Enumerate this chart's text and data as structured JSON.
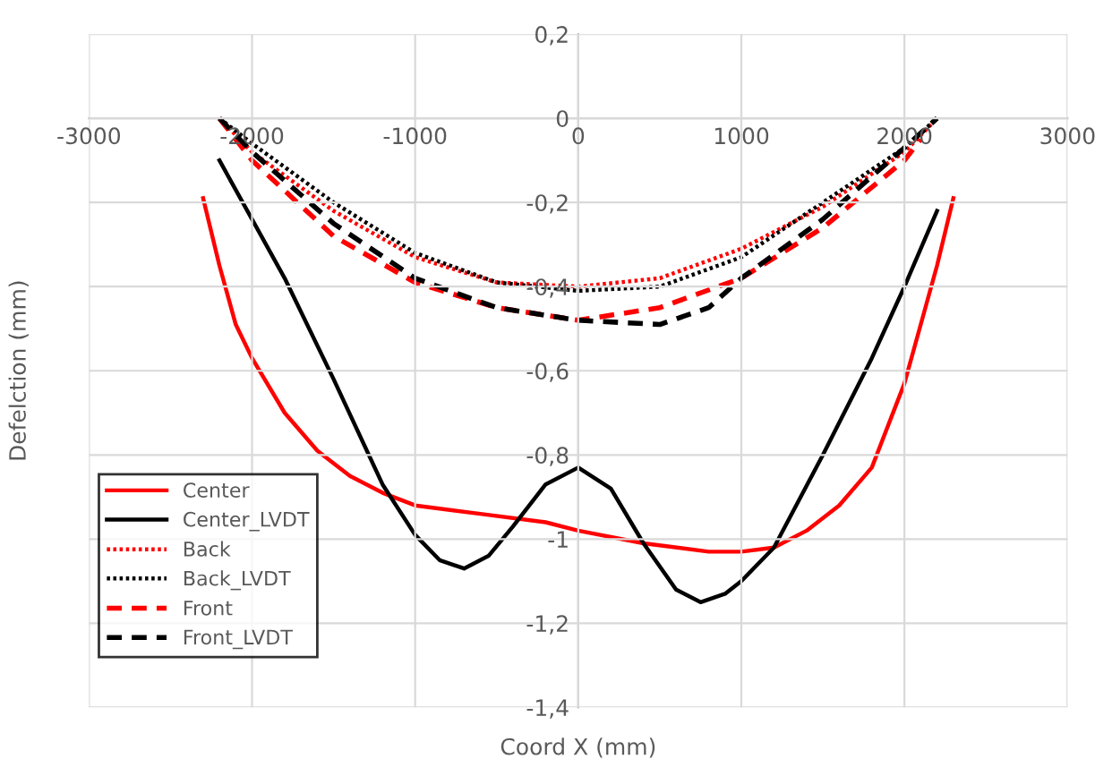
{
  "chart_data": {
    "type": "line",
    "xlabel": "Coord X (mm)",
    "ylabel": "Defelction (mm)",
    "xlim": [
      -3000,
      3000
    ],
    "xticks": [
      -3000,
      -2000,
      -1000,
      0,
      1000,
      2000,
      3000
    ],
    "ylim": [
      -1.4,
      0.2
    ],
    "yticks": [
      {
        "value": -1.4,
        "label": "-1,4"
      },
      {
        "value": -1.2,
        "label": "-1,2"
      },
      {
        "value": -1,
        "label": "-1"
      },
      {
        "value": -0.8,
        "label": "-0,8"
      },
      {
        "value": -0.6,
        "label": "-0,6"
      },
      {
        "value": -0.4,
        "label": "-0,4"
      },
      {
        "value": -0.2,
        "label": "-0,2"
      },
      0,
      {
        "value": 0.2,
        "label": "0,2"
      }
    ],
    "grid": true,
    "legend": "bottom left",
    "marker": "none",
    "series": [
      {
        "name": "Center",
        "color": "#ff0000",
        "line_style": "solid",
        "x": [
          -2300,
          -2200,
          -2100,
          -2000,
          -1800,
          -1600,
          -1400,
          -1200,
          -1000,
          -600,
          -200,
          0,
          400,
          800,
          1000,
          1200,
          1400,
          1600,
          1800,
          2000,
          2200,
          2300
        ],
        "values": [
          -0.19,
          -0.35,
          -0.49,
          -0.57,
          -0.7,
          -0.79,
          -0.85,
          -0.89,
          -0.92,
          -0.94,
          -0.96,
          -0.98,
          -1.01,
          -1.03,
          -1.03,
          -1.02,
          -0.98,
          -0.92,
          -0.83,
          -0.63,
          -0.35,
          -0.19
        ]
      },
      {
        "name": "Center_LVDT",
        "color": "#000000",
        "line_style": "solid",
        "x": [
          -2200,
          -1800,
          -1500,
          -1200,
          -1000,
          -850,
          -700,
          -550,
          -400,
          -200,
          0,
          200,
          400,
          600,
          750,
          900,
          1000,
          1200,
          1500,
          1800,
          2000,
          2200
        ],
        "values": [
          -0.1,
          -0.38,
          -0.62,
          -0.87,
          -0.99,
          -1.05,
          -1.07,
          -1.04,
          -0.97,
          -0.87,
          -0.83,
          -0.88,
          -1.01,
          -1.12,
          -1.15,
          -1.13,
          -1.1,
          -1.02,
          -0.8,
          -0.57,
          -0.4,
          -0.22
        ]
      },
      {
        "name": "Back",
        "color": "#ff0000",
        "line_style": "dotted",
        "x": [
          -2200,
          -2000,
          -1500,
          -1000,
          -500,
          0,
          500,
          1000,
          1500,
          2000,
          2200
        ],
        "values": [
          0,
          -0.08,
          -0.22,
          -0.33,
          -0.39,
          -0.4,
          -0.38,
          -0.31,
          -0.21,
          -0.08,
          0
        ]
      },
      {
        "name": "Back_LVDT",
        "color": "#000000",
        "line_style": "dotted",
        "x": [
          -2200,
          -2000,
          -1500,
          -1000,
          -500,
          0,
          500,
          1000,
          1500,
          2000,
          2200
        ],
        "values": [
          0,
          -0.06,
          -0.2,
          -0.32,
          -0.39,
          -0.41,
          -0.4,
          -0.33,
          -0.2,
          -0.07,
          0
        ]
      },
      {
        "name": "Front",
        "color": "#ff0000",
        "line_style": "dashed",
        "x": [
          -2200,
          -2000,
          -1500,
          -1000,
          -500,
          0,
          500,
          1000,
          1500,
          2000,
          2100
        ],
        "values": [
          0,
          -0.1,
          -0.28,
          -0.39,
          -0.45,
          -0.48,
          -0.45,
          -0.38,
          -0.26,
          -0.1,
          -0.05
        ]
      },
      {
        "name": "Front_LVDT",
        "color": "#000000",
        "line_style": "dashed",
        "x": [
          -2200,
          -2000,
          -1500,
          -1000,
          -500,
          0,
          500,
          800,
          1000,
          1500,
          2000,
          2200
        ],
        "values": [
          0,
          -0.08,
          -0.25,
          -0.38,
          -0.45,
          -0.48,
          -0.49,
          -0.45,
          -0.38,
          -0.24,
          -0.07,
          0
        ]
      }
    ]
  }
}
